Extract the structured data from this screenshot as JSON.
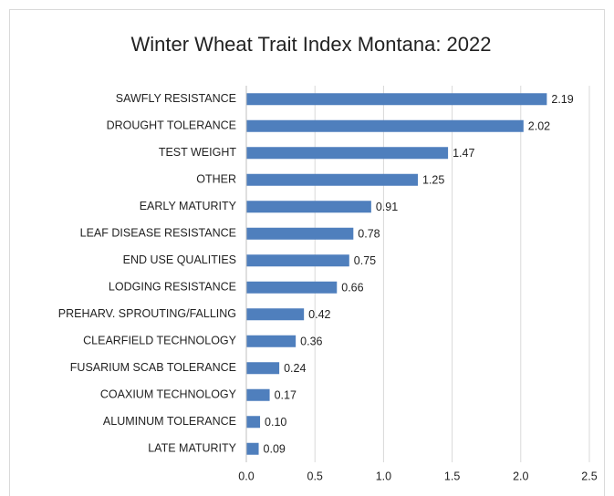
{
  "chart_data": {
    "type": "hbar",
    "title": "Winter Wheat Trait Index Montana: 2022",
    "categories": [
      "SAWFLY RESISTANCE",
      "DROUGHT TOLERANCE",
      "TEST WEIGHT",
      "OTHER",
      "EARLY MATURITY",
      "LEAF DISEASE RESISTANCE",
      "END USE QUALITIES",
      "LODGING RESISTANCE",
      "PREHARV. SPROUTING/FALLING",
      "CLEARFIELD TECHNOLOGY",
      "FUSARIUM SCAB TOLERANCE",
      "COAXIUM TECHNOLOGY",
      "ALUMINUM TOLERANCE",
      "LATE MATURITY"
    ],
    "values": [
      2.19,
      2.02,
      1.47,
      1.25,
      0.91,
      0.78,
      0.75,
      0.66,
      0.42,
      0.36,
      0.24,
      0.17,
      0.1,
      0.09
    ],
    "value_labels": [
      "2.19",
      "2.02",
      "1.47",
      "1.25",
      "0.91",
      "0.78",
      "0.75",
      "0.66",
      "0.42",
      "0.36",
      "0.24",
      "0.17",
      "0.10",
      "0.09"
    ],
    "color": "#4f7fbd",
    "xlim": [
      0,
      2.5
    ],
    "xticks": [
      {
        "value": 0,
        "label": "0.0"
      },
      0.5,
      {
        "value": 1,
        "label": "1.0"
      },
      1.5,
      {
        "value": 2,
        "label": "2.0"
      },
      2.5
    ],
    "grid": true
  }
}
